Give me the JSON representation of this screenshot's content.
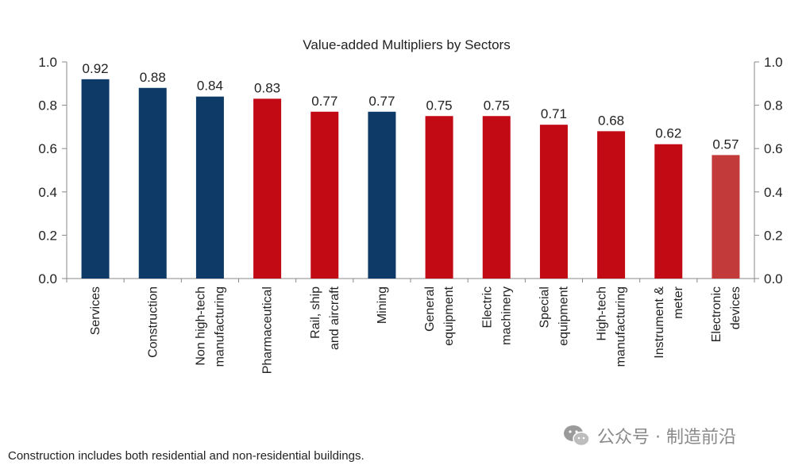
{
  "chart_data": {
    "type": "bar",
    "title": "Value-added Multipliers by Sectors",
    "categories": [
      "Services",
      "Construction",
      "Non high-tech manufacturing",
      "Pharmaceutical",
      "Rail, ship and aircraft",
      "Mining",
      "General equipment",
      "Electric machinery",
      "Special equipment",
      "High-tech manufacturing",
      "Instrument & meter",
      "Electronic devices"
    ],
    "category_lines": [
      [
        "Services"
      ],
      [
        "Construction"
      ],
      [
        "Non high-tech",
        "manufacturing"
      ],
      [
        "Pharmaceutical"
      ],
      [
        "Rail, ship",
        "and aircraft"
      ],
      [
        "Mining"
      ],
      [
        "General",
        "equipment"
      ],
      [
        "Electric",
        "machinery"
      ],
      [
        "Special",
        "equipment"
      ],
      [
        "High-tech",
        "manufacturing"
      ],
      [
        "Instrument &",
        "meter"
      ],
      [
        "Electronic",
        "devices"
      ]
    ],
    "values": [
      0.92,
      0.88,
      0.84,
      0.83,
      0.77,
      0.77,
      0.75,
      0.75,
      0.71,
      0.68,
      0.62,
      0.57
    ],
    "value_labels": [
      "0.92",
      "0.88",
      "0.84",
      "0.83",
      "0.77",
      "0.77",
      "0.75",
      "0.75",
      "0.71",
      "0.68",
      "0.62",
      "0.57"
    ],
    "bar_colors": [
      "#0d3a66",
      "#0d3a66",
      "#0d3a66",
      "#c10a14",
      "#c10a14",
      "#0d3a66",
      "#c10a14",
      "#c10a14",
      "#c10a14",
      "#c10a14",
      "#c10a14",
      "#c23a3a"
    ],
    "ylim": [
      0,
      1.0
    ],
    "yticks": [
      "0.0",
      "0.2",
      "0.4",
      "0.6",
      "0.8",
      "1.0"
    ],
    "secondary_yticks": [
      "0.0",
      "0.2",
      "0.4",
      "0.6",
      "0.8",
      "1.0"
    ],
    "grid": false,
    "legend": "none",
    "xlabel": "",
    "ylabel": ""
  },
  "footnote": "Construction includes both residential and non-residential buildings.",
  "watermark": {
    "icon": "wechat-icon",
    "text": "公众号 · 制造前沿"
  }
}
